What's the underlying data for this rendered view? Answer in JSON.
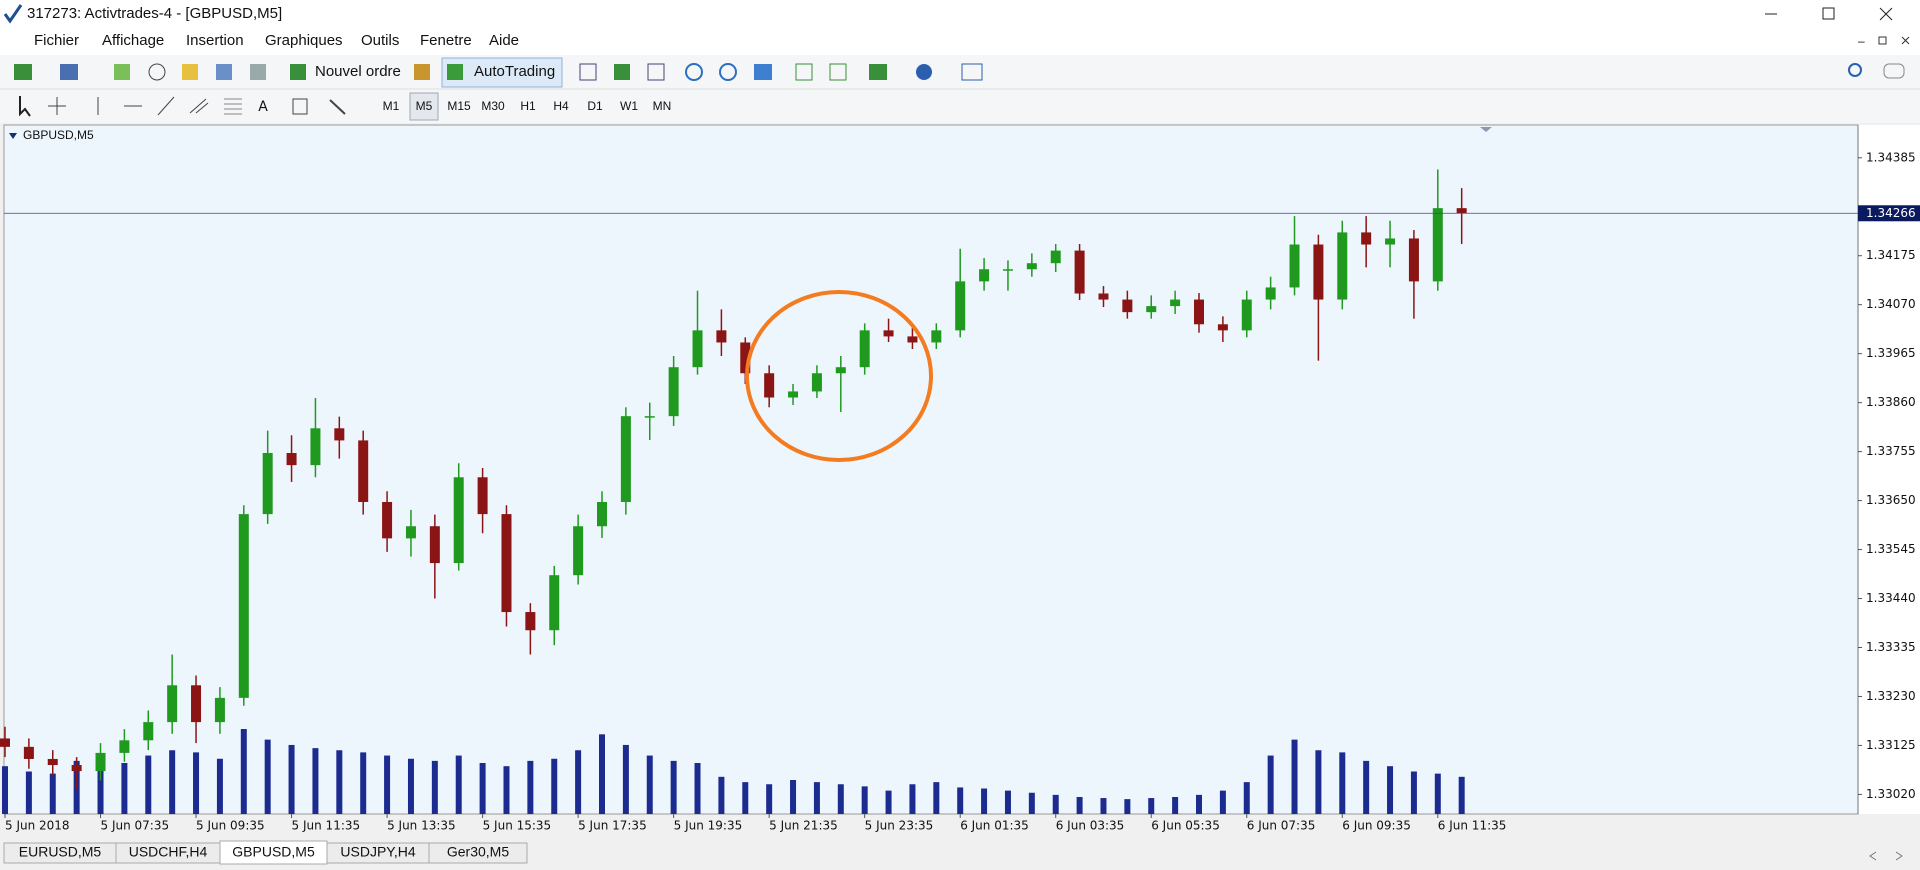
{
  "window": {
    "title": "317273: Activtrades-4 - [GBPUSD,M5]"
  },
  "menu": [
    "Fichier",
    "Affichage",
    "Insertion",
    "Graphiques",
    "Outils",
    "Fenetre",
    "Aide"
  ],
  "toolbar": {
    "new_order": "Nouvel ordre",
    "autotrading": "AutoTrading",
    "timeframes": [
      "M1",
      "M5",
      "M15",
      "M30",
      "H1",
      "H4",
      "D1",
      "W1",
      "MN"
    ]
  },
  "chart_data": {
    "type": "candlestick",
    "symbol": "GBPUSD,M5",
    "x": [
      "5 Jun 05:35",
      "5 Jun 06:05",
      "5 Jun 06:35",
      "5 Jun 07:05",
      "5 Jun 07:35",
      "5 Jun 08:05",
      "5 Jun 08:35",
      "5 Jun 09:05",
      "5 Jun 09:35",
      "5 Jun 10:05",
      "5 Jun 10:35",
      "5 Jun 11:05",
      "5 Jun 11:35",
      "5 Jun 12:05",
      "5 Jun 12:35",
      "5 Jun 13:05",
      "5 Jun 13:35",
      "5 Jun 14:05",
      "5 Jun 14:35",
      "5 Jun 15:05",
      "5 Jun 15:35",
      "5 Jun 16:05",
      "5 Jun 16:35",
      "5 Jun 17:05",
      "5 Jun 17:35",
      "5 Jun 18:05",
      "5 Jun 18:35",
      "5 Jun 19:05",
      "5 Jun 19:35",
      "5 Jun 20:05",
      "5 Jun 20:35",
      "5 Jun 21:05",
      "5 Jun 21:35",
      "5 Jun 22:05",
      "5 Jun 22:35",
      "5 Jun 23:05",
      "5 Jun 23:35",
      "6 Jun 00:05",
      "6 Jun 00:35",
      "6 Jun 01:05",
      "6 Jun 01:35",
      "6 Jun 02:05",
      "6 Jun 02:35",
      "6 Jun 03:05",
      "6 Jun 03:35",
      "6 Jun 04:05",
      "6 Jun 04:35",
      "6 Jun 05:05",
      "6 Jun 05:35",
      "6 Jun 06:05",
      "6 Jun 06:35",
      "6 Jun 07:05",
      "6 Jun 07:35",
      "6 Jun 08:05",
      "6 Jun 08:35",
      "6 Jun 09:05",
      "6 Jun 09:35",
      "6 Jun 10:05",
      "6 Jun 10:35",
      "6 Jun 11:05",
      "6 Jun 11:35",
      "6 Jun 12:05"
    ],
    "open": [
      1.3314,
      1.33122,
      1.33096,
      1.33083,
      1.3307,
      1.33109,
      1.33136,
      1.33175,
      1.33254,
      1.33175,
      1.33227,
      1.33621,
      1.33752,
      1.33726,
      1.33805,
      1.33779,
      1.33647,
      1.33569,
      1.33595,
      1.33516,
      1.337,
      1.33621,
      1.33411,
      1.33372,
      1.3349,
      1.33595,
      1.33647,
      1.33831,
      1.33831,
      1.33936,
      1.34015,
      1.33989,
      1.33923,
      1.33871,
      1.33884,
      1.33923,
      1.33936,
      1.34015,
      1.34002,
      1.33989,
      1.34015,
      1.3412,
      1.34146,
      1.34146,
      1.34159,
      1.34186,
      1.34094,
      1.34081,
      1.34054,
      1.34067,
      1.34081,
      1.34028,
      1.34015,
      1.34081,
      1.34107,
      1.34199,
      1.34081,
      1.34225,
      1.34199,
      1.34212,
      1.3412,
      1.34277
    ],
    "high": [
      1.33165,
      1.3314,
      1.33115,
      1.331,
      1.3313,
      1.3316,
      1.332,
      1.3332,
      1.33275,
      1.3325,
      1.3364,
      1.338,
      1.3379,
      1.3387,
      1.3383,
      1.338,
      1.3367,
      1.3363,
      1.3362,
      1.3373,
      1.3372,
      1.3364,
      1.3343,
      1.3351,
      1.3362,
      1.3367,
      1.3385,
      1.3386,
      1.3396,
      1.341,
      1.3406,
      1.34,
      1.3394,
      1.339,
      1.3394,
      1.3396,
      1.3403,
      1.3404,
      1.3402,
      1.3403,
      1.3419,
      1.3417,
      1.34165,
      1.3418,
      1.342,
      1.342,
      1.3411,
      1.341,
      1.3409,
      1.341,
      1.34095,
      1.34045,
      1.341,
      1.3413,
      1.3426,
      1.3422,
      1.3425,
      1.3426,
      1.3425,
      1.3423,
      1.3436,
      1.3432
    ],
    "low": [
      1.331,
      1.33075,
      1.3306,
      1.3303,
      1.3305,
      1.3309,
      1.33115,
      1.3315,
      1.3313,
      1.3315,
      1.3321,
      1.336,
      1.3369,
      1.337,
      1.3374,
      1.3362,
      1.3354,
      1.3353,
      1.3344,
      1.335,
      1.3358,
      1.3338,
      1.3332,
      1.3334,
      1.3347,
      1.3357,
      1.3362,
      1.3378,
      1.3381,
      1.3392,
      1.3396,
      1.339,
      1.3385,
      1.33855,
      1.3387,
      1.3384,
      1.3392,
      1.3399,
      1.33975,
      1.33975,
      1.34,
      1.341,
      1.341,
      1.3413,
      1.3414,
      1.3408,
      1.34065,
      1.3404,
      1.3404,
      1.3405,
      1.3401,
      1.3399,
      1.34,
      1.3406,
      1.3409,
      1.3395,
      1.3406,
      1.3415,
      1.3415,
      1.3404,
      1.341,
      1.342
    ],
    "close": [
      1.33122,
      1.33096,
      1.33083,
      1.3307,
      1.33109,
      1.33136,
      1.33175,
      1.33254,
      1.33175,
      1.33227,
      1.33621,
      1.33752,
      1.33726,
      1.33805,
      1.33779,
      1.33647,
      1.33569,
      1.33595,
      1.33516,
      1.337,
      1.33621,
      1.33411,
      1.33372,
      1.3349,
      1.33595,
      1.33647,
      1.33831,
      1.33831,
      1.33936,
      1.34015,
      1.33989,
      1.33923,
      1.33871,
      1.33884,
      1.33923,
      1.33936,
      1.34015,
      1.34002,
      1.33989,
      1.34015,
      1.3412,
      1.34146,
      1.34146,
      1.34159,
      1.34186,
      1.34094,
      1.34081,
      1.34054,
      1.34067,
      1.34081,
      1.34028,
      1.34015,
      1.34081,
      1.34107,
      1.34199,
      1.34081,
      1.34225,
      1.34199,
      1.34212,
      1.3412,
      1.34277,
      1.34266
    ],
    "volume": [
      45,
      40,
      38,
      50,
      42,
      48,
      55,
      60,
      58,
      52,
      80,
      70,
      65,
      62,
      60,
      58,
      55,
      52,
      50,
      55,
      48,
      45,
      50,
      52,
      60,
      75,
      65,
      55,
      50,
      48,
      35,
      30,
      28,
      32,
      30,
      28,
      26,
      22,
      28,
      30,
      25,
      24,
      22,
      20,
      18,
      16,
      15,
      14,
      15,
      16,
      18,
      22,
      30,
      55,
      70,
      60,
      58,
      50,
      45,
      40,
      38,
      35
    ],
    "ylim": [
      1.32978,
      1.34451
    ],
    "yticks": [
      1.34385,
      1.34175,
      {
        "value": 1.3407,
        "label": "1.34070"
      },
      1.33965,
      {
        "value": 1.3386,
        "label": "1.33860"
      },
      1.33755,
      {
        "value": 1.3365,
        "label": "1.33650"
      },
      1.33545,
      {
        "value": 1.3344,
        "label": "1.33440"
      },
      1.33335,
      {
        "value": 1.3323,
        "label": "1.33230"
      },
      1.33125,
      {
        "value": 1.3302,
        "label": "1.33020"
      }
    ],
    "xticks": [
      {
        "value": "5 Jun 05:35",
        "label": "5 Jun 2018"
      },
      "5 Jun 07:35",
      "5 Jun 09:35",
      "5 Jun 11:35",
      "5 Jun 13:35",
      "5 Jun 15:35",
      "5 Jun 17:35",
      "5 Jun 19:35",
      "5 Jun 21:35",
      "5 Jun 23:35",
      "6 Jun 01:35",
      "6 Jun 03:35",
      "6 Jun 05:35",
      "6 Jun 07:35",
      "6 Jun 09:35",
      "6 Jun 11:35"
    ],
    "current_price": 1.34266,
    "up_color": "#1f9a1f",
    "down_color": "#8b1414",
    "volume_color": "#1c2b8f",
    "grid": false
  },
  "tabs": [
    "EURUSD,M5",
    "USDCHF,H4",
    "GBPUSD,M5",
    "USDJPY,H4",
    "Ger30,M5"
  ]
}
